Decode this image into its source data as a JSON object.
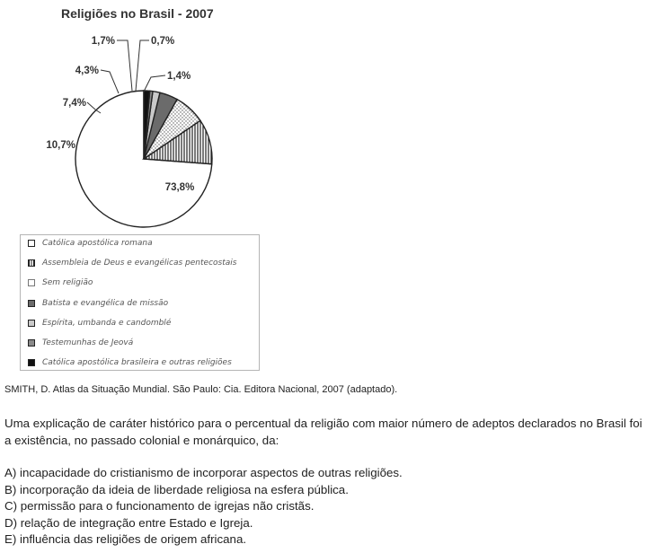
{
  "chart_data": {
    "type": "pie",
    "title": "Religiões no Brasil - 2007",
    "slices": [
      {
        "label": "Católica apostólica romana",
        "value": 73.8,
        "value_label": "73,8%",
        "pattern": "plain"
      },
      {
        "label": "Assembleia de Deus e evangélicas pentecostais",
        "value": 10.7,
        "value_label": "10,7%",
        "pattern": "vertical-lines"
      },
      {
        "label": "Sem religião",
        "value": 7.4,
        "value_label": "7,4%",
        "pattern": "dots"
      },
      {
        "label": "Batista e evangélica de missão",
        "value": 4.3,
        "value_label": "4,3%",
        "pattern": "dark-gray"
      },
      {
        "label": "Espírita, umbanda e candomblé",
        "value": 1.7,
        "value_label": "1,7%",
        "pattern": "light-gray"
      },
      {
        "label": "Testemunhas de Jeová",
        "value": 0.7,
        "value_label": "0,7%",
        "pattern": "mid-gray"
      },
      {
        "label": "Católica apostólica brasileira e outras religiões",
        "value": 1.4,
        "value_label": "1,4%",
        "pattern": "black"
      }
    ],
    "legend_position": "bottom"
  },
  "source": "SMITH, D. Atlas da Situação Mundial. São Paulo: Cia. Editora Nacional, 2007 (adaptado).",
  "question": "Uma explicação de caráter histórico para o percentual da religião com maior número de adeptos declarados no Brasil foi a existência, no passado colonial e monárquico, da:",
  "options": [
    "A) incapacidade do cristianismo de incorporar aspectos de outras religiões.",
    "B) incorporação da ideia de liberdade religiosa na esfera pública.",
    "C) permissão para o funcionamento de igrejas não cristãs.",
    "D) relação de integração entre Estado e Igreja.",
    "E) influência das religiões de origem africana."
  ],
  "colors": {
    "outline": "#222222",
    "plain": "#ffffff",
    "dark-gray": "#6b6b6b",
    "mid-gray": "#8a8a8a",
    "light-gray": "#c9c9c9",
    "black": "#111111",
    "legend-border": "#b5b5b5"
  }
}
